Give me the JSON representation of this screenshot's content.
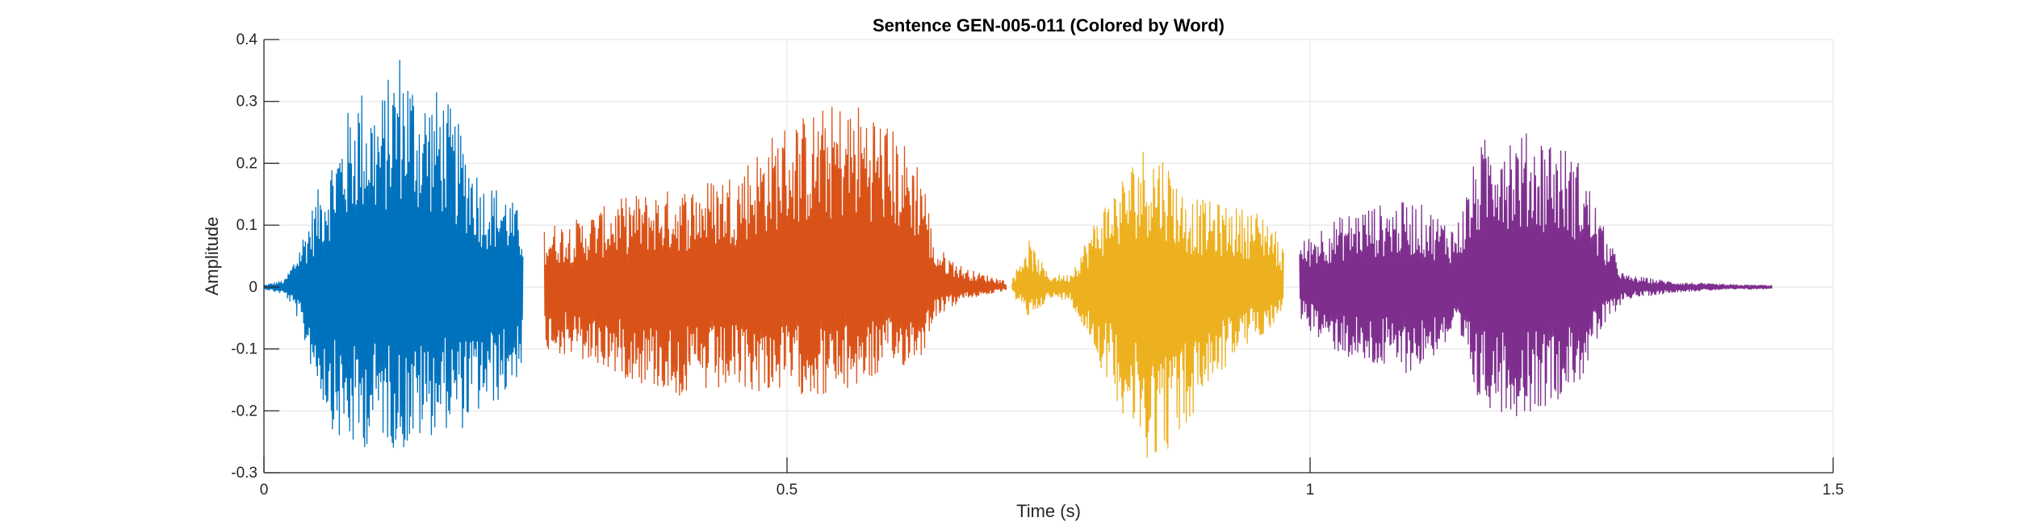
{
  "chart_data": {
    "type": "line",
    "title": "Sentence GEN-005-011 (Colored by Word)",
    "xlabel": "Time (s)",
    "ylabel": "Amplitude",
    "xlim": [
      0,
      1.5
    ],
    "ylim": [
      -0.3,
      0.4
    ],
    "xticks": [
      0,
      0.5,
      1,
      1.5
    ],
    "xtick_labels": [
      "0",
      "0.5",
      "1",
      "1.5"
    ],
    "yticks": [
      -0.3,
      -0.2,
      -0.1,
      0,
      0.1,
      0.2,
      0.3,
      0.4
    ],
    "ytick_labels": [
      "-0.3",
      "-0.2",
      "-0.1",
      "0",
      "0.1",
      "0.2",
      "0.3",
      "0.4"
    ],
    "grid": true,
    "series": [
      {
        "color": "#0072BD",
        "t_start": 0.0,
        "t_end": 0.248,
        "envelope": {
          "t": [
            0.0,
            0.02,
            0.03,
            0.05,
            0.07,
            0.09,
            0.11,
            0.13,
            0.15,
            0.17,
            0.19,
            0.21,
            0.23,
            0.248
          ],
          "max": [
            0.003,
            0.012,
            0.05,
            0.15,
            0.24,
            0.33,
            0.3,
            0.39,
            0.32,
            0.32,
            0.25,
            0.17,
            0.16,
            0.11
          ],
          "min": [
            -0.003,
            -0.012,
            -0.04,
            -0.16,
            -0.25,
            -0.27,
            -0.24,
            -0.27,
            -0.25,
            -0.23,
            -0.23,
            -0.2,
            -0.18,
            -0.13
          ]
        }
      },
      {
        "color": "#D95319",
        "t_start": 0.268,
        "t_end": 0.71,
        "envelope": {
          "t": [
            0.268,
            0.3,
            0.35,
            0.4,
            0.45,
            0.5,
            0.55,
            0.58,
            0.6,
            0.63,
            0.64,
            0.67,
            0.71
          ],
          "max": [
            0.1,
            0.11,
            0.15,
            0.16,
            0.19,
            0.27,
            0.3,
            0.3,
            0.26,
            0.2,
            0.07,
            0.03,
            0.01
          ],
          "min": [
            -0.1,
            -0.12,
            -0.15,
            -0.18,
            -0.17,
            -0.17,
            -0.18,
            -0.15,
            -0.14,
            -0.11,
            -0.05,
            -0.02,
            -0.005
          ]
        }
      },
      {
        "color": "#EDB120",
        "t_start": 0.715,
        "t_end": 0.975,
        "envelope": {
          "t": [
            0.715,
            0.73,
            0.75,
            0.77,
            0.8,
            0.82,
            0.84,
            0.86,
            0.88,
            0.9,
            0.93,
            0.96,
            0.975
          ],
          "max": [
            0.01,
            0.08,
            0.02,
            0.02,
            0.13,
            0.18,
            0.23,
            0.22,
            0.15,
            0.14,
            0.13,
            0.12,
            0.06
          ],
          "min": [
            -0.01,
            -0.05,
            -0.02,
            -0.02,
            -0.13,
            -0.2,
            -0.28,
            -0.27,
            -0.24,
            -0.17,
            -0.11,
            -0.07,
            -0.04
          ]
        }
      },
      {
        "color": "#7E2F8E",
        "t_start": 0.99,
        "t_end": 1.442,
        "envelope": {
          "t": [
            0.99,
            1.01,
            1.05,
            1.1,
            1.14,
            1.16,
            1.18,
            1.2,
            1.23,
            1.26,
            1.28,
            1.3,
            1.35,
            1.4,
            1.442
          ],
          "max": [
            0.07,
            0.1,
            0.13,
            0.14,
            0.1,
            0.22,
            0.28,
            0.25,
            0.25,
            0.2,
            0.1,
            0.02,
            0.008,
            0.004,
            0.003
          ],
          "min": [
            -0.05,
            -0.09,
            -0.13,
            -0.14,
            -0.08,
            -0.19,
            -0.2,
            -0.21,
            -0.19,
            -0.15,
            -0.07,
            -0.02,
            -0.008,
            -0.004,
            -0.003
          ]
        }
      }
    ]
  }
}
